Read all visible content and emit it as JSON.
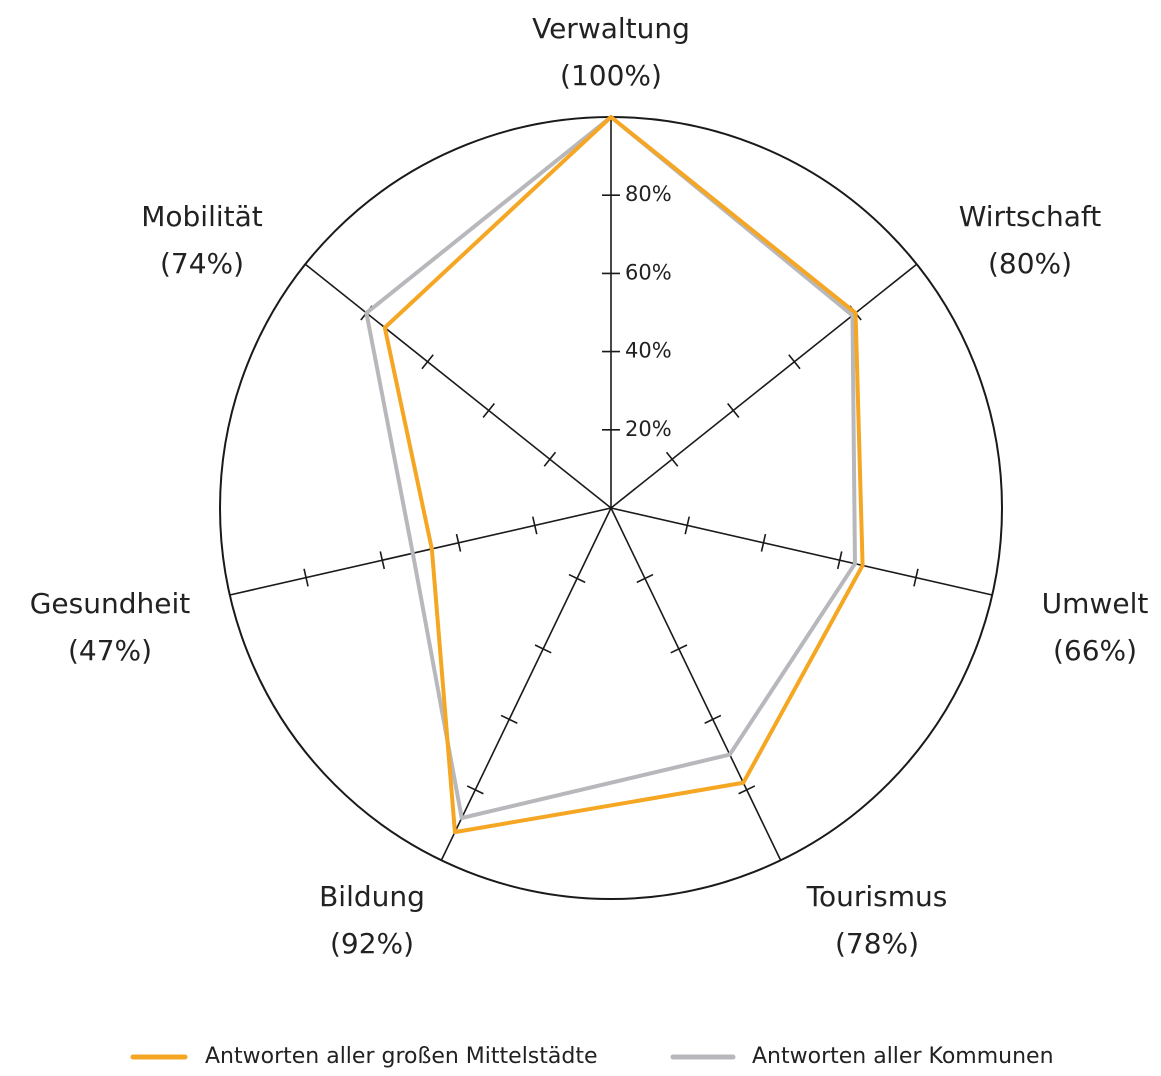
{
  "chart_data": {
    "type": "radar",
    "categories": [
      "Verwaltung",
      "Wirtschaft",
      "Umwelt",
      "Tourismus",
      "Bildung",
      "Gesundheit",
      "Mobilität"
    ],
    "rlim": [
      0,
      100
    ],
    "rticks": [
      {
        "value": 20,
        "label": "20%"
      },
      {
        "value": 40,
        "label": "40%"
      },
      {
        "value": 60,
        "label": "60%"
      },
      {
        "value": 80,
        "label": "80%"
      }
    ],
    "series": [
      {
        "name": "Antworten aller großen Mittelstädte",
        "color": "#f5a623",
        "values": [
          100,
          80,
          66,
          78,
          92,
          47,
          74
        ],
        "value_labels": [
          "(100%)",
          "(80%)",
          "(66%)",
          "(78%)",
          "(92%)",
          "(47%)",
          "(74%)"
        ]
      },
      {
        "name": "Antworten aller Kommunen",
        "color": "#b8b8bc",
        "values": [
          100,
          79,
          64,
          70,
          88,
          52,
          80
        ]
      }
    ]
  }
}
